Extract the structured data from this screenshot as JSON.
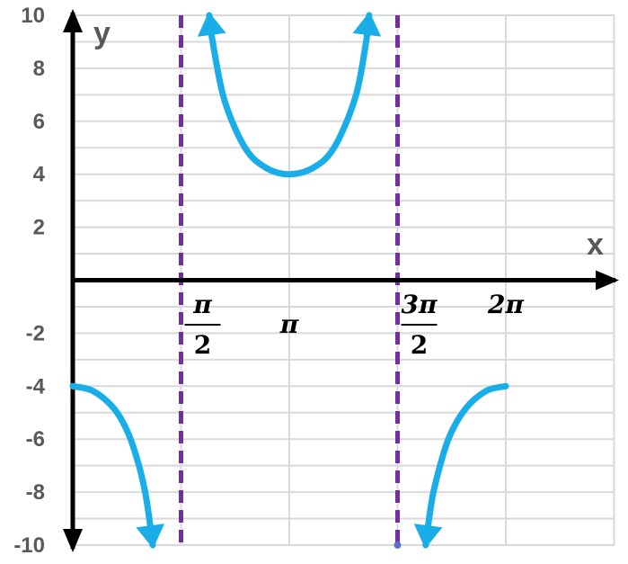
{
  "chart_data": {
    "type": "line",
    "title": "",
    "xlabel": "x",
    "ylabel": "y",
    "xlim": [
      0,
      6.2832
    ],
    "ylim": [
      -10,
      10
    ],
    "grid": true,
    "y_ticks": [
      10,
      8,
      6,
      4,
      2,
      -2,
      -4,
      -6,
      -8,
      -10
    ],
    "x_ticks": [
      {
        "value": 1.5708,
        "num": "π",
        "den": "2"
      },
      {
        "value": 3.1416,
        "text": "π"
      },
      {
        "value": 4.7124,
        "num": "3π",
        "den": "2"
      },
      {
        "value": 6.2832,
        "text": "2π"
      }
    ],
    "asymptotes": [
      1.5708,
      4.7124
    ],
    "series": [
      {
        "function": "y = -4·sec(x)",
        "segments": [
          {
            "x": [
              0,
              0.3,
              0.6,
              0.8,
              0.95,
              1.05,
              1.11,
              1.16
            ],
            "y": [
              -4,
              -4.19,
              -4.85,
              -5.75,
              -6.9,
              -8.0,
              -9.0,
              -10
            ]
          },
          {
            "x": [
              1.98,
              2.03,
              2.2,
              2.5,
              2.8,
              3.1416,
              3.5,
              3.8,
              4.1,
              4.25,
              4.3
            ],
            "y": [
              10,
              9.0,
              6.8,
              5.0,
              4.25,
              4,
              4.26,
              5.04,
              6.9,
              8.9,
              10
            ]
          },
          {
            "x": [
              5.12,
              5.17,
              5.25,
              5.45,
              5.7,
              6.0,
              6.2832
            ],
            "y": [
              -10,
              -9.0,
              -7.8,
              -6.0,
              -4.85,
              -4.18,
              -4
            ]
          }
        ]
      }
    ],
    "colors": {
      "curve": "#19aee8",
      "asymptote": "#7030a0",
      "axis": "#000000",
      "grid": "#d9d9d9"
    }
  }
}
